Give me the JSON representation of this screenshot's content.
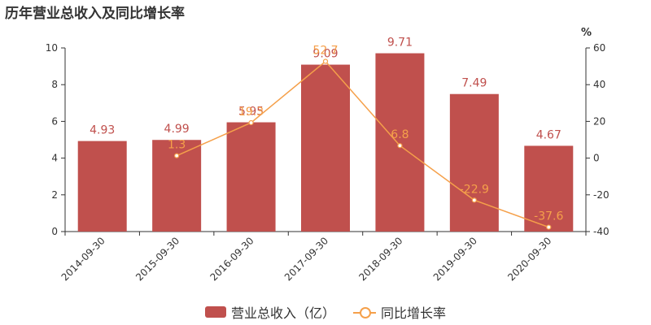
{
  "title": "历年营业总收入及同比增长率",
  "colors": {
    "bar": "#c0504d",
    "line": "#f5a04a",
    "axis": "#333333",
    "bar_label": "#c0504d",
    "line_label": "#f5a04a"
  },
  "legend": {
    "bar_label": "营业总收入（亿）",
    "line_label": "同比增长率"
  },
  "chart_data": {
    "type": "bar",
    "categories": [
      "2014-09-30",
      "2015-09-30",
      "2016-09-30",
      "2017-09-30",
      "2018-09-30",
      "2019-09-30",
      "2020-09-30"
    ],
    "series": [
      {
        "name": "营业总收入（亿）",
        "type": "bar",
        "axis": "left",
        "values": [
          4.93,
          4.99,
          5.95,
          9.09,
          9.71,
          7.49,
          4.67
        ]
      },
      {
        "name": "同比增长率",
        "type": "line",
        "axis": "right",
        "values": [
          null,
          1.3,
          19.3,
          52.7,
          6.8,
          -22.9,
          -37.6
        ]
      }
    ],
    "y_left": {
      "range": [
        0,
        10
      ],
      "ticks": [
        0,
        2,
        4,
        6,
        8,
        10
      ]
    },
    "y_right": {
      "label": "%",
      "range": [
        -40,
        60
      ],
      "ticks": [
        -40,
        -20,
        0,
        20,
        40,
        60
      ]
    },
    "legend_position": "bottom-center",
    "grid": false
  }
}
